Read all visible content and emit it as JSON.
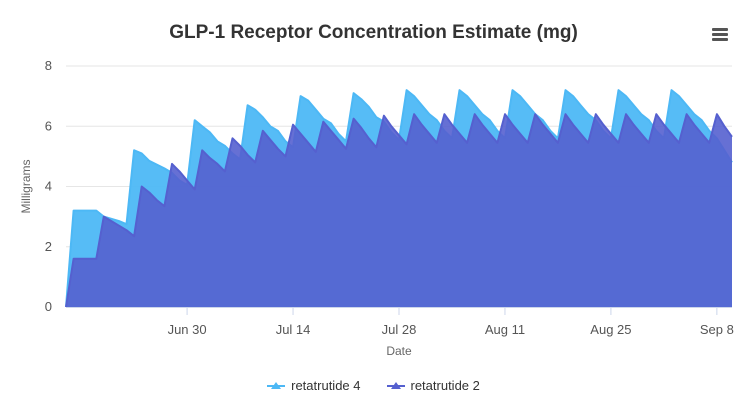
{
  "chart": {
    "title": "GLP-1 Receptor Concentration Estimate (mg)",
    "menu_icon": "hamburger-menu-icon"
  },
  "chart_data": {
    "type": "area",
    "title": "GLP-1 Receptor Concentration Estimate (mg)",
    "xlabel": "Date",
    "ylabel": "Milligrams",
    "ylim": [
      0,
      8
    ],
    "yticks": [
      "0",
      "2",
      "4",
      "6",
      "8"
    ],
    "xlim": [
      "2024-06-14",
      "2024-09-10"
    ],
    "xticks": [
      {
        "date": "2024-06-30",
        "label": "Jun 30"
      },
      {
        "date": "2024-07-14",
        "label": "Jul 14"
      },
      {
        "date": "2024-07-28",
        "label": "Jul 28"
      },
      {
        "date": "2024-08-11",
        "label": "Aug 11"
      },
      {
        "date": "2024-08-25",
        "label": "Aug 25"
      },
      {
        "date": "2024-09-08",
        "label": "Sep 8"
      }
    ],
    "grid": true,
    "legend_position": "bottom",
    "series": [
      {
        "name": "retatrutide 4",
        "color": "#4db8f5",
        "points": [
          [
            "2024-06-14",
            0
          ],
          [
            "2024-06-15",
            3.2
          ],
          [
            "2024-06-17",
            3.2
          ],
          [
            "2024-06-18",
            3.2
          ],
          [
            "2024-06-19",
            3.0
          ],
          [
            "2024-06-21",
            2.85
          ],
          [
            "2024-06-22",
            2.75
          ],
          [
            "2024-06-23",
            5.2
          ],
          [
            "2024-06-24",
            5.1
          ],
          [
            "2024-06-25",
            4.85
          ],
          [
            "2024-06-27",
            4.6
          ],
          [
            "2024-06-28",
            4.45
          ],
          [
            "2024-06-29",
            4.2
          ],
          [
            "2024-06-30",
            4.05
          ],
          [
            "2024-07-01",
            6.2
          ],
          [
            "2024-07-02",
            6.0
          ],
          [
            "2024-07-03",
            5.8
          ],
          [
            "2024-07-04",
            5.5
          ],
          [
            "2024-07-05",
            5.35
          ],
          [
            "2024-07-06",
            5.1
          ],
          [
            "2024-07-07",
            4.9
          ],
          [
            "2024-07-08",
            6.7
          ],
          [
            "2024-07-09",
            6.55
          ],
          [
            "2024-07-10",
            6.3
          ],
          [
            "2024-07-11",
            6.0
          ],
          [
            "2024-07-12",
            5.85
          ],
          [
            "2024-07-13",
            5.5
          ],
          [
            "2024-07-14",
            5.3
          ],
          [
            "2024-07-15",
            7.0
          ],
          [
            "2024-07-16",
            6.85
          ],
          [
            "2024-07-17",
            6.55
          ],
          [
            "2024-07-18",
            6.25
          ],
          [
            "2024-07-19",
            6.1
          ],
          [
            "2024-07-20",
            5.75
          ],
          [
            "2024-07-21",
            5.5
          ],
          [
            "2024-07-22",
            7.1
          ],
          [
            "2024-07-23",
            6.9
          ],
          [
            "2024-07-24",
            6.65
          ],
          [
            "2024-07-25",
            6.3
          ],
          [
            "2024-07-26",
            6.15
          ],
          [
            "2024-07-27",
            5.8
          ],
          [
            "2024-07-28",
            5.55
          ],
          [
            "2024-07-29",
            7.2
          ],
          [
            "2024-07-30",
            7.0
          ],
          [
            "2024-07-31",
            6.7
          ],
          [
            "2024-08-01",
            6.4
          ],
          [
            "2024-08-02",
            6.2
          ],
          [
            "2024-08-03",
            5.85
          ],
          [
            "2024-08-04",
            5.6
          ],
          [
            "2024-08-05",
            7.2
          ],
          [
            "2024-08-06",
            7.0
          ],
          [
            "2024-08-07",
            6.7
          ],
          [
            "2024-08-08",
            6.4
          ],
          [
            "2024-08-09",
            6.2
          ],
          [
            "2024-08-10",
            5.85
          ],
          [
            "2024-08-11",
            5.6
          ],
          [
            "2024-08-12",
            7.2
          ],
          [
            "2024-08-13",
            7.0
          ],
          [
            "2024-08-14",
            6.7
          ],
          [
            "2024-08-15",
            6.4
          ],
          [
            "2024-08-16",
            6.2
          ],
          [
            "2024-08-17",
            5.85
          ],
          [
            "2024-08-18",
            5.6
          ],
          [
            "2024-08-19",
            7.2
          ],
          [
            "2024-08-20",
            7.0
          ],
          [
            "2024-08-21",
            6.7
          ],
          [
            "2024-08-22",
            6.4
          ],
          [
            "2024-08-23",
            6.2
          ],
          [
            "2024-08-24",
            5.85
          ],
          [
            "2024-08-25",
            5.6
          ],
          [
            "2024-08-26",
            7.2
          ],
          [
            "2024-08-27",
            7.0
          ],
          [
            "2024-08-28",
            6.7
          ],
          [
            "2024-08-29",
            6.4
          ],
          [
            "2024-08-30",
            6.2
          ],
          [
            "2024-08-31",
            5.85
          ],
          [
            "2024-09-01",
            5.6
          ],
          [
            "2024-09-02",
            7.2
          ],
          [
            "2024-09-03",
            7.0
          ],
          [
            "2024-09-04",
            6.7
          ],
          [
            "2024-09-05",
            6.4
          ],
          [
            "2024-09-06",
            6.2
          ],
          [
            "2024-09-07",
            5.85
          ],
          [
            "2024-09-08",
            5.6
          ],
          [
            "2024-09-09",
            5.2
          ],
          [
            "2024-09-10",
            4.8
          ]
        ]
      },
      {
        "name": "retatrutide 2",
        "color": "#5560cf",
        "points": [
          [
            "2024-06-14",
            0
          ],
          [
            "2024-06-15",
            1.6
          ],
          [
            "2024-06-17",
            1.6
          ],
          [
            "2024-06-18",
            1.6
          ],
          [
            "2024-06-19",
            3.0
          ],
          [
            "2024-06-20",
            2.85
          ],
          [
            "2024-06-21",
            2.7
          ],
          [
            "2024-06-22",
            2.55
          ],
          [
            "2024-06-23",
            2.35
          ],
          [
            "2024-06-24",
            4.0
          ],
          [
            "2024-06-25",
            3.8
          ],
          [
            "2024-06-26",
            3.55
          ],
          [
            "2024-06-27",
            3.35
          ],
          [
            "2024-06-28",
            4.75
          ],
          [
            "2024-06-29",
            4.5
          ],
          [
            "2024-06-30",
            4.2
          ],
          [
            "2024-07-01",
            3.9
          ],
          [
            "2024-07-02",
            5.2
          ],
          [
            "2024-07-03",
            4.95
          ],
          [
            "2024-07-04",
            4.75
          ],
          [
            "2024-07-05",
            4.5
          ],
          [
            "2024-07-06",
            5.6
          ],
          [
            "2024-07-07",
            5.35
          ],
          [
            "2024-07-08",
            5.05
          ],
          [
            "2024-07-09",
            4.8
          ],
          [
            "2024-07-10",
            5.85
          ],
          [
            "2024-07-11",
            5.55
          ],
          [
            "2024-07-12",
            5.25
          ],
          [
            "2024-07-13",
            5.0
          ],
          [
            "2024-07-14",
            6.05
          ],
          [
            "2024-07-15",
            5.75
          ],
          [
            "2024-07-16",
            5.45
          ],
          [
            "2024-07-17",
            5.15
          ],
          [
            "2024-07-18",
            6.15
          ],
          [
            "2024-07-19",
            5.85
          ],
          [
            "2024-07-20",
            5.55
          ],
          [
            "2024-07-21",
            5.25
          ],
          [
            "2024-07-22",
            6.25
          ],
          [
            "2024-07-23",
            5.95
          ],
          [
            "2024-07-24",
            5.6
          ],
          [
            "2024-07-25",
            5.3
          ],
          [
            "2024-07-26",
            6.35
          ],
          [
            "2024-07-27",
            6.0
          ],
          [
            "2024-07-28",
            5.7
          ],
          [
            "2024-07-29",
            5.4
          ],
          [
            "2024-07-30",
            6.4
          ],
          [
            "2024-07-31",
            6.05
          ],
          [
            "2024-08-01",
            5.75
          ],
          [
            "2024-08-02",
            5.45
          ],
          [
            "2024-08-03",
            6.4
          ],
          [
            "2024-08-04",
            6.05
          ],
          [
            "2024-08-05",
            5.75
          ],
          [
            "2024-08-06",
            5.45
          ],
          [
            "2024-08-07",
            6.4
          ],
          [
            "2024-08-08",
            6.05
          ],
          [
            "2024-08-09",
            5.75
          ],
          [
            "2024-08-10",
            5.45
          ],
          [
            "2024-08-11",
            6.4
          ],
          [
            "2024-08-12",
            6.05
          ],
          [
            "2024-08-13",
            5.75
          ],
          [
            "2024-08-14",
            5.45
          ],
          [
            "2024-08-15",
            6.4
          ],
          [
            "2024-08-16",
            6.05
          ],
          [
            "2024-08-17",
            5.75
          ],
          [
            "2024-08-18",
            5.45
          ],
          [
            "2024-08-19",
            6.4
          ],
          [
            "2024-08-20",
            6.05
          ],
          [
            "2024-08-21",
            5.75
          ],
          [
            "2024-08-22",
            5.45
          ],
          [
            "2024-08-23",
            6.4
          ],
          [
            "2024-08-24",
            6.05
          ],
          [
            "2024-08-25",
            5.75
          ],
          [
            "2024-08-26",
            5.45
          ],
          [
            "2024-08-27",
            6.4
          ],
          [
            "2024-08-28",
            6.05
          ],
          [
            "2024-08-29",
            5.75
          ],
          [
            "2024-08-30",
            5.45
          ],
          [
            "2024-08-31",
            6.4
          ],
          [
            "2024-09-01",
            6.05
          ],
          [
            "2024-09-02",
            5.75
          ],
          [
            "2024-09-03",
            5.45
          ],
          [
            "2024-09-04",
            6.4
          ],
          [
            "2024-09-05",
            6.05
          ],
          [
            "2024-09-06",
            5.75
          ],
          [
            "2024-09-07",
            5.45
          ],
          [
            "2024-09-08",
            6.4
          ],
          [
            "2024-09-09",
            6.0
          ],
          [
            "2024-09-10",
            5.65
          ]
        ]
      }
    ]
  },
  "legend": {
    "items": [
      {
        "label": "retatrutide 4",
        "color": "#4db8f5"
      },
      {
        "label": "retatrutide 2",
        "color": "#5560cf"
      }
    ]
  }
}
